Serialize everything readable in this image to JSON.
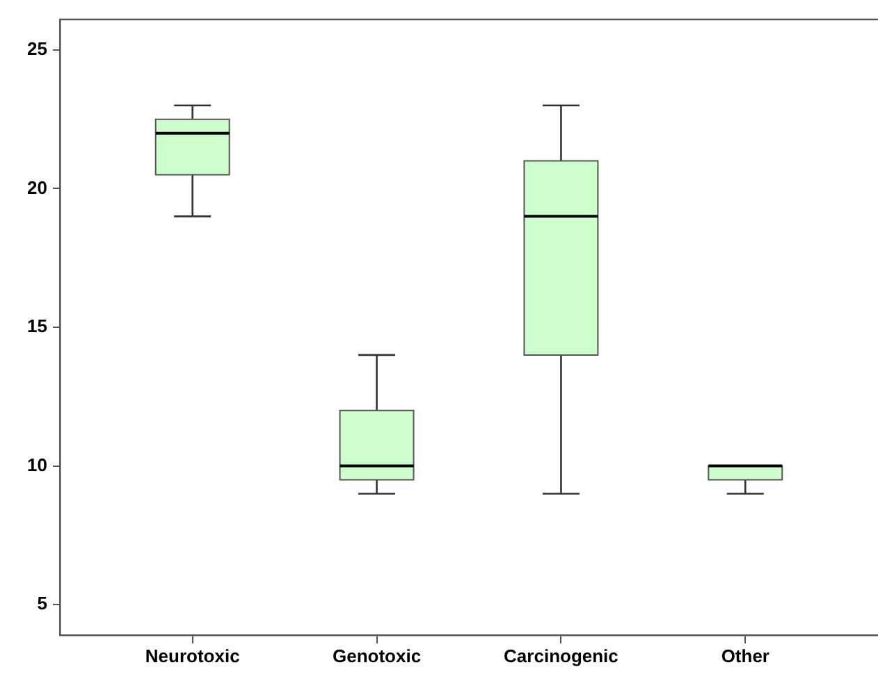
{
  "chart_data": {
    "type": "box",
    "categories": [
      "Neurotoxic",
      "Genotoxic",
      "Carcinogenic",
      "Other"
    ],
    "color": "#ccffcc",
    "boxes": [
      {
        "low": 19,
        "q1": 20.5,
        "median": 22,
        "q3": 22.5,
        "high": 23
      },
      {
        "low": 9,
        "q1": 9.5,
        "median": 10,
        "q3": 12,
        "high": 14
      },
      {
        "low": 9,
        "q1": 14,
        "median": 19,
        "q3": 21,
        "high": 23
      },
      {
        "low": 9,
        "q1": 9.5,
        "median": 10,
        "q3": 10,
        "high": 10
      }
    ],
    "ylim": [
      3.9,
      26.1
    ],
    "yticks": [
      5,
      10,
      15,
      20,
      25
    ]
  }
}
